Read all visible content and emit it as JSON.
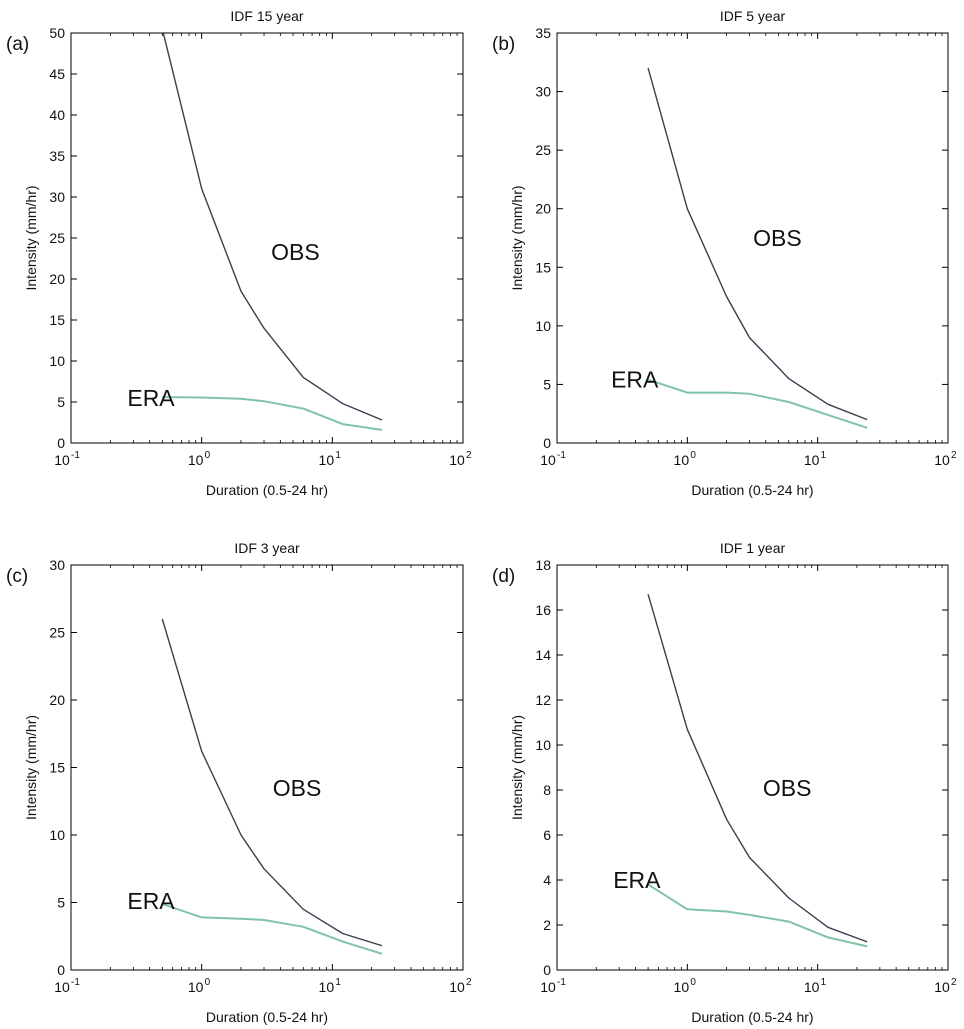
{
  "chart_data": [
    {
      "panel_label": "(a)",
      "type": "line",
      "title": "IDF 15 year",
      "xlabel": "Duration (0.5-24 hr)",
      "ylabel": "Intensity (mm/hr)",
      "xscale": "log",
      "xlim": [
        0.1,
        100
      ],
      "ylim": [
        0,
        50
      ],
      "xticks": [
        0.1,
        1,
        10,
        100
      ],
      "xtick_labels": [
        {
          "base": "10",
          "exp": "-1"
        },
        {
          "base": "10",
          "exp": "0"
        },
        {
          "base": "10",
          "exp": "1"
        },
        {
          "base": "10",
          "exp": "2"
        }
      ],
      "yticks": [
        0,
        5,
        10,
        15,
        20,
        25,
        30,
        35,
        40,
        45,
        50
      ],
      "grid": false,
      "series": [
        {
          "name": "OBS",
          "color": "#3d3d52",
          "x": [
            0.5,
            1,
            2,
            3,
            6,
            12,
            24
          ],
          "y": [
            50.5,
            31,
            18.5,
            14,
            8,
            4.8,
            2.8
          ]
        },
        {
          "name": "ERA",
          "color": "#7fc4a6",
          "x": [
            0.5,
            1,
            2,
            3,
            6,
            12,
            24
          ],
          "y": [
            5.6,
            5.55,
            5.4,
            5.1,
            4.2,
            2.3,
            1.6
          ]
        }
      ],
      "annotations": [
        {
          "text": "OBS",
          "x": 3.4,
          "y": 23.3
        },
        {
          "text": "ERA",
          "x": 0.27,
          "y": 5.5
        }
      ]
    },
    {
      "panel_label": "(b)",
      "type": "line",
      "title": "IDF 5 year",
      "xlabel": "Duration (0.5-24 hr)",
      "ylabel": "Intensity (mm/hr)",
      "xscale": "log",
      "xlim": [
        0.1,
        100
      ],
      "ylim": [
        0,
        35
      ],
      "xticks": [
        0.1,
        1,
        10,
        100
      ],
      "xtick_labels": [
        {
          "base": "10",
          "exp": "-1"
        },
        {
          "base": "10",
          "exp": "0"
        },
        {
          "base": "10",
          "exp": "1"
        },
        {
          "base": "10",
          "exp": "2"
        }
      ],
      "yticks": [
        0,
        5,
        10,
        15,
        20,
        25,
        30,
        35
      ],
      "grid": false,
      "series": [
        {
          "name": "OBS",
          "color": "#3d3d52",
          "x": [
            0.5,
            1,
            2,
            3,
            6,
            12,
            24
          ],
          "y": [
            32,
            20,
            12.5,
            9,
            5.5,
            3.3,
            2
          ]
        },
        {
          "name": "ERA",
          "color": "#7fc4a6",
          "x": [
            0.5,
            1,
            2,
            3,
            6,
            12,
            24
          ],
          "y": [
            5.4,
            4.3,
            4.3,
            4.2,
            3.5,
            2.4,
            1.3
          ]
        }
      ],
      "annotations": [
        {
          "text": "OBS",
          "x": 3.2,
          "y": 17.5
        },
        {
          "text": "ERA",
          "x": 0.26,
          "y": 5.4
        }
      ]
    },
    {
      "panel_label": "(c)",
      "type": "line",
      "title": "IDF 3 year",
      "xlabel": "Duration (0.5-24 hr)",
      "ylabel": "Intensity (mm/hr)",
      "xscale": "log",
      "xlim": [
        0.1,
        100
      ],
      "ylim": [
        0,
        30
      ],
      "xticks": [
        0.1,
        1,
        10,
        100
      ],
      "xtick_labels": [
        {
          "base": "10",
          "exp": "-1"
        },
        {
          "base": "10",
          "exp": "0"
        },
        {
          "base": "10",
          "exp": "1"
        },
        {
          "base": "10",
          "exp": "2"
        }
      ],
      "yticks": [
        0,
        5,
        10,
        15,
        20,
        25,
        30
      ],
      "grid": false,
      "series": [
        {
          "name": "OBS",
          "color": "#3d3d52",
          "x": [
            0.5,
            1,
            2,
            3,
            6,
            12,
            24
          ],
          "y": [
            26,
            16.2,
            10,
            7.5,
            4.5,
            2.7,
            1.8
          ]
        },
        {
          "name": "ERA",
          "color": "#7fc4a6",
          "x": [
            0.5,
            1,
            2,
            3,
            6,
            12,
            24
          ],
          "y": [
            4.9,
            3.9,
            3.8,
            3.7,
            3.2,
            2.1,
            1.2
          ]
        }
      ],
      "annotations": [
        {
          "text": "OBS",
          "x": 3.5,
          "y": 13.5
        },
        {
          "text": "ERA",
          "x": 0.27,
          "y": 5.1
        }
      ]
    },
    {
      "panel_label": "(d)",
      "type": "line",
      "title": "IDF 1 year",
      "xlabel": "Duration (0.5-24 hr)",
      "ylabel": "Intensity (mm/hr)",
      "xscale": "log",
      "xlim": [
        0.1,
        100
      ],
      "ylim": [
        0,
        18
      ],
      "xticks": [
        0.1,
        1,
        10,
        100
      ],
      "xtick_labels": [
        {
          "base": "10",
          "exp": "-1"
        },
        {
          "base": "10",
          "exp": "0"
        },
        {
          "base": "10",
          "exp": "1"
        },
        {
          "base": "10",
          "exp": "2"
        }
      ],
      "yticks": [
        0,
        2,
        4,
        6,
        8,
        10,
        12,
        14,
        16,
        18
      ],
      "grid": false,
      "series": [
        {
          "name": "OBS",
          "color": "#3d3d52",
          "x": [
            0.5,
            1,
            2,
            3,
            6,
            12,
            24
          ],
          "y": [
            16.7,
            10.7,
            6.7,
            5,
            3.2,
            1.9,
            1.25
          ]
        },
        {
          "name": "ERA",
          "color": "#7fc4a6",
          "x": [
            0.5,
            1,
            2,
            3,
            6,
            12,
            24
          ],
          "y": [
            3.8,
            2.7,
            2.6,
            2.45,
            2.15,
            1.45,
            1.05
          ]
        }
      ],
      "annotations": [
        {
          "text": "OBS",
          "x": 3.8,
          "y": 8.1
        },
        {
          "text": "ERA",
          "x": 0.27,
          "y": 4.0
        }
      ]
    }
  ]
}
